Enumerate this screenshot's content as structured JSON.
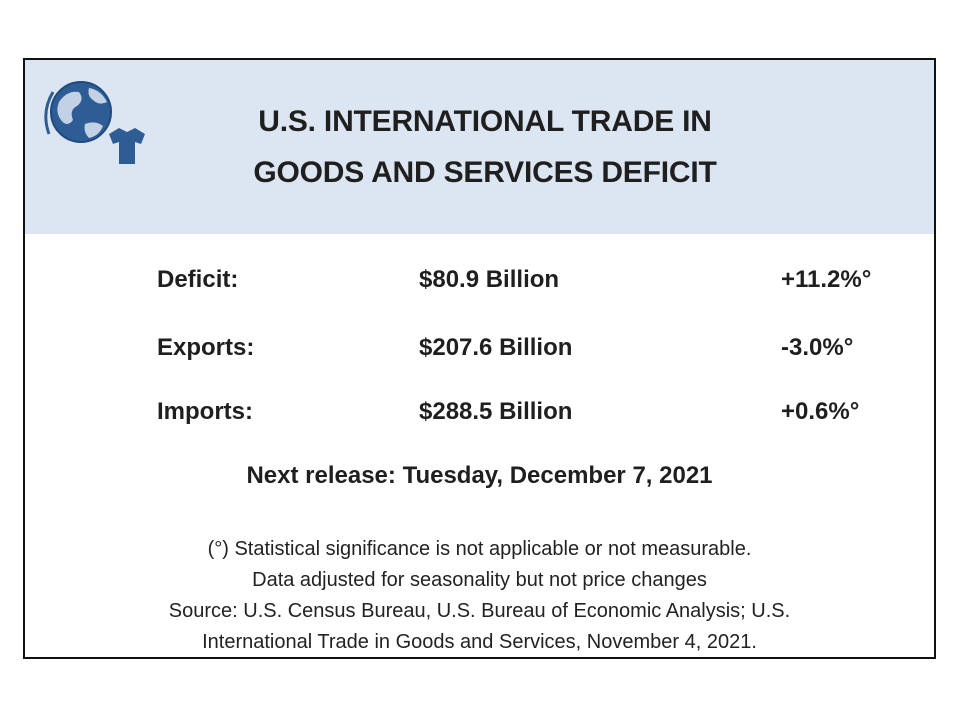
{
  "header": {
    "title_line1": "U.S. INTERNATIONAL TRADE IN",
    "title_line2": "GOODS AND SERVICES DEFICIT",
    "logo_icon": "globe-and-shirt-icon",
    "background_color": "#dce6f2",
    "icon_color": "#2e5d96"
  },
  "stats": [
    {
      "label": "Deficit:",
      "value": "$80.9 Billion",
      "change": "+11.2%°"
    },
    {
      "label": "Exports:",
      "value": "$207.6 Billion",
      "change": "-3.0%°"
    },
    {
      "label": "Imports:",
      "value": "$288.5 Billion",
      "change": "+0.6%°"
    }
  ],
  "next_release": "Next release: Tuesday, December 7, 2021",
  "notes": {
    "line1": "(°) Statistical significance is not applicable or not measurable.",
    "line2": "Data adjusted for seasonality but not price changes",
    "line3": "Source: U.S. Census Bureau, U.S. Bureau of Economic Analysis; U.S.",
    "line4": "International Trade in Goods and Services, November 4, 2021."
  }
}
